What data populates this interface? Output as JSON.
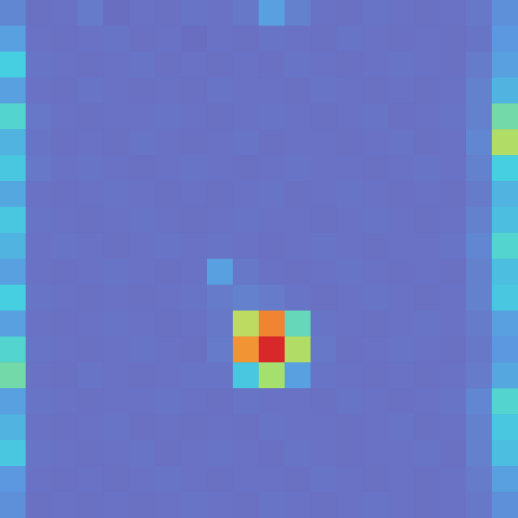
{
  "chart_data": {
    "type": "heatmap",
    "grid": false,
    "tick_labels": false,
    "value_range": [
      0,
      1
    ],
    "cells": [
      [
        0.22,
        0.14,
        0.15,
        0.18,
        0.13,
        0.15,
        0.14,
        0.16,
        0.15,
        0.17,
        0.3,
        0.2,
        0.15,
        0.14,
        0.16,
        0.15,
        0.14,
        0.15,
        0.17,
        0.25
      ],
      [
        0.3,
        0.15,
        0.14,
        0.15,
        0.16,
        0.14,
        0.15,
        0.13,
        0.15,
        0.14,
        0.16,
        0.15,
        0.14,
        0.16,
        0.15,
        0.14,
        0.15,
        0.14,
        0.16,
        0.28
      ],
      [
        0.42,
        0.16,
        0.15,
        0.14,
        0.15,
        0.16,
        0.14,
        0.15,
        0.14,
        0.15,
        0.14,
        0.16,
        0.15,
        0.14,
        0.15,
        0.16,
        0.15,
        0.14,
        0.18,
        0.3
      ],
      [
        0.3,
        0.15,
        0.14,
        0.16,
        0.15,
        0.14,
        0.15,
        0.14,
        0.16,
        0.15,
        0.15,
        0.14,
        0.16,
        0.15,
        0.14,
        0.15,
        0.14,
        0.15,
        0.2,
        0.35
      ],
      [
        0.45,
        0.17,
        0.15,
        0.14,
        0.15,
        0.15,
        0.16,
        0.15,
        0.14,
        0.15,
        0.16,
        0.15,
        0.14,
        0.15,
        0.16,
        0.14,
        0.15,
        0.16,
        0.2,
        0.5
      ],
      [
        0.35,
        0.16,
        0.14,
        0.15,
        0.14,
        0.16,
        0.15,
        0.14,
        0.15,
        0.16,
        0.14,
        0.15,
        0.15,
        0.14,
        0.15,
        0.16,
        0.14,
        0.15,
        0.22,
        0.6
      ],
      [
        0.4,
        0.17,
        0.15,
        0.16,
        0.15,
        0.14,
        0.15,
        0.16,
        0.15,
        0.14,
        0.15,
        0.16,
        0.15,
        0.15,
        0.14,
        0.15,
        0.16,
        0.15,
        0.2,
        0.42
      ],
      [
        0.32,
        0.15,
        0.14,
        0.15,
        0.16,
        0.15,
        0.14,
        0.15,
        0.14,
        0.15,
        0.16,
        0.14,
        0.15,
        0.16,
        0.15,
        0.14,
        0.15,
        0.14,
        0.18,
        0.35
      ],
      [
        0.4,
        0.16,
        0.15,
        0.14,
        0.15,
        0.16,
        0.15,
        0.14,
        0.15,
        0.16,
        0.15,
        0.15,
        0.14,
        0.15,
        0.16,
        0.15,
        0.14,
        0.15,
        0.2,
        0.38
      ],
      [
        0.35,
        0.15,
        0.16,
        0.15,
        0.14,
        0.15,
        0.16,
        0.15,
        0.16,
        0.15,
        0.14,
        0.15,
        0.16,
        0.15,
        0.14,
        0.15,
        0.15,
        0.16,
        0.22,
        0.45
      ],
      [
        0.3,
        0.15,
        0.14,
        0.15,
        0.16,
        0.15,
        0.14,
        0.15,
        0.3,
        0.17,
        0.15,
        0.14,
        0.15,
        0.16,
        0.15,
        0.14,
        0.15,
        0.14,
        0.2,
        0.38
      ],
      [
        0.42,
        0.16,
        0.15,
        0.14,
        0.15,
        0.14,
        0.15,
        0.16,
        0.18,
        0.2,
        0.18,
        0.16,
        0.14,
        0.15,
        0.16,
        0.15,
        0.14,
        0.15,
        0.2,
        0.4
      ],
      [
        0.3,
        0.15,
        0.14,
        0.15,
        0.16,
        0.15,
        0.14,
        0.15,
        0.17,
        0.62,
        0.85,
        0.48,
        0.16,
        0.15,
        0.14,
        0.15,
        0.16,
        0.15,
        0.18,
        0.3
      ],
      [
        0.45,
        0.16,
        0.15,
        0.14,
        0.15,
        0.16,
        0.15,
        0.14,
        0.18,
        0.82,
        1.0,
        0.6,
        0.17,
        0.14,
        0.15,
        0.16,
        0.15,
        0.14,
        0.17,
        0.28
      ],
      [
        0.5,
        0.15,
        0.14,
        0.16,
        0.15,
        0.14,
        0.15,
        0.16,
        0.16,
        0.4,
        0.58,
        0.3,
        0.16,
        0.15,
        0.14,
        0.15,
        0.14,
        0.15,
        0.18,
        0.32
      ],
      [
        0.3,
        0.16,
        0.15,
        0.14,
        0.15,
        0.15,
        0.16,
        0.15,
        0.14,
        0.16,
        0.15,
        0.15,
        0.14,
        0.16,
        0.15,
        0.14,
        0.15,
        0.16,
        0.22,
        0.45
      ],
      [
        0.35,
        0.15,
        0.14,
        0.15,
        0.16,
        0.14,
        0.15,
        0.14,
        0.15,
        0.14,
        0.16,
        0.15,
        0.15,
        0.14,
        0.15,
        0.16,
        0.14,
        0.15,
        0.2,
        0.4
      ],
      [
        0.4,
        0.16,
        0.15,
        0.14,
        0.15,
        0.16,
        0.14,
        0.15,
        0.16,
        0.15,
        0.14,
        0.16,
        0.15,
        0.14,
        0.15,
        0.15,
        0.16,
        0.14,
        0.2,
        0.38
      ],
      [
        0.28,
        0.15,
        0.14,
        0.15,
        0.14,
        0.15,
        0.16,
        0.15,
        0.14,
        0.15,
        0.15,
        0.14,
        0.16,
        0.15,
        0.14,
        0.15,
        0.14,
        0.15,
        0.18,
        0.3
      ],
      [
        0.25,
        0.14,
        0.15,
        0.14,
        0.15,
        0.14,
        0.15,
        0.16,
        0.15,
        0.14,
        0.16,
        0.15,
        0.14,
        0.15,
        0.16,
        0.15,
        0.14,
        0.15,
        0.17,
        0.25
      ]
    ]
  }
}
